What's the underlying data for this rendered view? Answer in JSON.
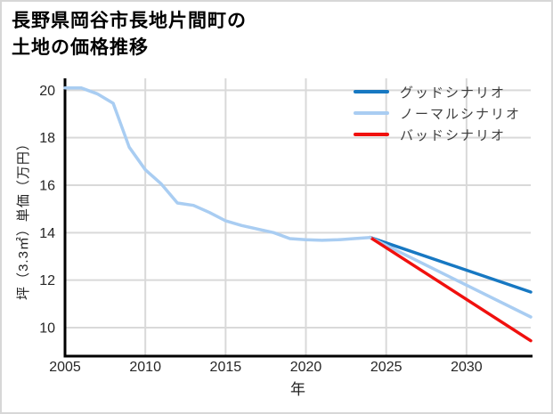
{
  "title": {
    "line1": "長野県岡谷市長地片間町の",
    "line2": "土地の価格推移"
  },
  "chart_data": {
    "type": "line",
    "title": "長野県岡谷市長地片間町の土地の価格推移",
    "xlabel": "年",
    "ylabel": "坪（3.3㎡）単価（万円）",
    "xlim": [
      2005,
      2034
    ],
    "ylim": [
      8.8,
      20.5
    ],
    "xticks": [
      2005,
      2010,
      2015,
      2020,
      2025,
      2030
    ],
    "yticks": [
      10,
      12,
      14,
      16,
      18,
      20
    ],
    "grid": true,
    "legend_position": "top-right-inside",
    "colors": {
      "good": "#1778c2",
      "normal": "#a9cdf2",
      "bad": "#f0100e",
      "grid": "#d9d9d9",
      "axis": "#000000",
      "tick_text": "#262626"
    },
    "series": [
      {
        "id": "good-scenario",
        "legend_label": "グッドシナリオ",
        "color": "#1778c2",
        "x": [
          2024,
          2034
        ],
        "y": [
          13.8,
          11.5
        ]
      },
      {
        "id": "normal-scenario",
        "legend_label": "ノーマルシナリオ",
        "color": "#a9cdf2",
        "x": [
          2024,
          2034
        ],
        "y": [
          13.8,
          10.45
        ]
      },
      {
        "id": "bad-scenario",
        "legend_label": "バッドシナリオ",
        "color": "#f0100e",
        "x": [
          2024,
          2034
        ],
        "y": [
          13.8,
          9.45
        ]
      },
      {
        "id": "historical",
        "legend_label": null,
        "color": "#a9cdf2",
        "x": [
          2005,
          2006,
          2007,
          2008,
          2009,
          2010,
          2011,
          2012,
          2013,
          2014,
          2015,
          2016,
          2017,
          2018,
          2019,
          2020,
          2021,
          2022,
          2023,
          2024
        ],
        "y": [
          20.1,
          20.1,
          19.85,
          19.45,
          17.6,
          16.65,
          16.05,
          15.25,
          15.15,
          14.85,
          14.5,
          14.3,
          14.15,
          14.0,
          13.75,
          13.7,
          13.68,
          13.7,
          13.75,
          13.8
        ]
      }
    ]
  }
}
